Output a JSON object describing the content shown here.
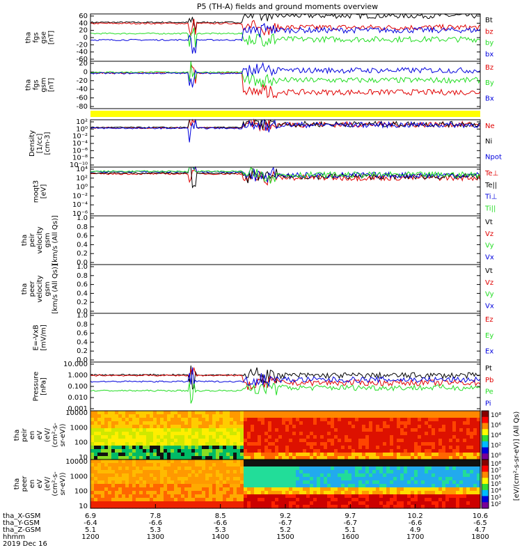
{
  "title": "P5 (TH-A) fields and ground moments overview",
  "colors": {
    "black": "#000000",
    "red": "#e00000",
    "green": "#22dd22",
    "blue": "#0000dd",
    "yellow": "#ffff00"
  },
  "chart_data": [
    {
      "type": "line",
      "id": "fgs_gse",
      "ylabel": [
        "tha",
        "fgs",
        "gse",
        "[nT]"
      ],
      "ylim": [
        -80,
        60
      ],
      "ticks": [
        "60",
        "40",
        "20",
        "0",
        "-20",
        "-40",
        "-60"
      ],
      "series": [
        {
          "name": "Bt",
          "color": "#000000",
          "level": 35,
          "level2": 55
        },
        {
          "name": "bz",
          "color": "#e00000",
          "level": 32,
          "level2": 20
        },
        {
          "name": "by",
          "color": "#22dd22",
          "level": 2,
          "level2": -15
        },
        {
          "name": "bx",
          "color": "#0000dd",
          "level": -17,
          "level2": 12
        }
      ]
    },
    {
      "type": "line",
      "id": "fgs_gsm",
      "ylabel": [
        "tha",
        "fgs",
        "gsm",
        "[nT]"
      ],
      "ylim": [
        -100,
        30
      ],
      "ticks": [
        "20",
        "0",
        "-20",
        "-40",
        "-60",
        "-80"
      ],
      "series": [
        {
          "name": "Bz",
          "color": "#e00000",
          "level": -2,
          "level2": -55
        },
        {
          "name": "By",
          "color": "#22dd22",
          "level": 0,
          "level2": -22
        },
        {
          "name": "Bx",
          "color": "#0000dd",
          "level": -3,
          "level2": 5
        }
      ]
    },
    {
      "type": "line",
      "id": "density",
      "ylabel": [
        "Density",
        "[1/cc]",
        "[cm-3]"
      ],
      "log": true,
      "ylim": [
        -11,
        3
      ],
      "ticks": [
        "10²",
        "10⁰",
        "10⁻²",
        "10⁻⁴",
        "10⁻⁶",
        "10⁻⁸",
        "10⁻¹⁰"
      ],
      "series": [
        {
          "name": "Ne",
          "color": "#e00000",
          "level": 0.6,
          "level2": 1.6
        },
        {
          "name": "Ni",
          "color": "#000000",
          "level": 0.7,
          "level2": 1.7
        },
        {
          "name": "Npot",
          "color": "#0000dd",
          "level": 0.5,
          "level2": 1.5
        }
      ]
    },
    {
      "type": "line",
      "id": "temp",
      "ylabel": [
        "moqt3",
        "[eV]"
      ],
      "log": true,
      "ylim": [
        -7,
        4.5
      ],
      "ticks": [
        "10⁴",
        "10²",
        "10⁰",
        "10⁻²",
        "10⁻⁴",
        "10⁻⁶"
      ],
      "series": [
        {
          "name": "Te⊥",
          "color": "#e00000",
          "level": 2.9,
          "level2": 2.0
        },
        {
          "name": "Te||",
          "color": "#000000",
          "level": 3.1,
          "level2": 2.3
        },
        {
          "name": "Ti⊥",
          "color": "#0000dd",
          "level": 3.4,
          "level2": 2.6
        },
        {
          "name": "Ti||",
          "color": "#22dd22",
          "level": 3.5,
          "level2": 2.7
        }
      ]
    },
    {
      "type": "line",
      "id": "peir_vel",
      "ylabel": [
        "tha",
        "peir",
        "velocity",
        "gsm",
        "[km/s (All Qs)]"
      ],
      "ylim": [
        0,
        1
      ],
      "ticks": [
        "1.0",
        "0.8",
        "0.6",
        "0.4",
        "0.2",
        "0.0"
      ],
      "series": [
        {
          "name": "Vt",
          "color": "#000000"
        },
        {
          "name": "Vz",
          "color": "#e00000"
        },
        {
          "name": "Vy",
          "color": "#22dd22"
        },
        {
          "name": "Vx",
          "color": "#0000dd"
        }
      ]
    },
    {
      "type": "line",
      "id": "peer_vel",
      "ylabel": [
        "tha",
        "peer",
        "velocity",
        "gsm",
        "[km/s (All Qs)]"
      ],
      "ylim": [
        0,
        1
      ],
      "ticks": [
        "1.0",
        "0.8",
        "0.6",
        "0.4",
        "0.2",
        "0.0"
      ],
      "series": [
        {
          "name": "Vt",
          "color": "#000000"
        },
        {
          "name": "Vz",
          "color": "#e00000"
        },
        {
          "name": "Vy",
          "color": "#22dd22"
        },
        {
          "name": "Vx",
          "color": "#0000dd"
        }
      ]
    },
    {
      "type": "line",
      "id": "efield",
      "ylabel": [
        "E=-VxB",
        "[mV/m]"
      ],
      "ylim": [
        0,
        1
      ],
      "ticks": [
        "1.0",
        "0.8",
        "0.6",
        "0.4",
        "0.2",
        "0.0"
      ],
      "series": [
        {
          "name": "Ez",
          "color": "#e00000"
        },
        {
          "name": "Ey",
          "color": "#22dd22"
        },
        {
          "name": "Ex",
          "color": "#0000dd"
        }
      ]
    },
    {
      "type": "line",
      "id": "pressure",
      "ylabel": [
        "Pressure",
        "[nPa]"
      ],
      "log": true,
      "ylim": [
        -3,
        1
      ],
      "ticks": [
        "10.000",
        "1.000",
        "0.100",
        "0.010",
        "0.001"
      ],
      "series": [
        {
          "name": "Pt",
          "color": "#000000",
          "level": -0.05,
          "level2": -0.1
        },
        {
          "name": "Pb",
          "color": "#e00000",
          "level": -0.1,
          "level2": -0.7
        },
        {
          "name": "Pe",
          "color": "#22dd22",
          "level": -1.35,
          "level2": -1.1
        },
        {
          "name": "Pi",
          "color": "#0000dd",
          "level": -0.6,
          "level2": -0.45
        }
      ]
    },
    {
      "type": "heatmap",
      "id": "peir_spec",
      "ylabel": [
        "tha",
        "peir",
        "en",
        "eV",
        "(eV/",
        "(cm²-s-",
        "sr-eV))"
      ],
      "ticks": [
        "10000",
        "1000",
        "100",
        "10"
      ],
      "colorbar": {
        "label": "[eV/(cm²-s-sr-eV)] (All Qs)",
        "ticks": [
          "10⁸",
          "10⁶",
          "10⁴",
          "10²",
          "10⁰"
        ]
      }
    },
    {
      "type": "heatmap",
      "id": "peer_spec",
      "ylabel": [
        "tha",
        "peer",
        "en",
        "eV",
        "(eV/",
        "(cm²-s-",
        "sr-eV))"
      ],
      "ticks": [
        "10000",
        "1000",
        "100",
        "10"
      ],
      "colorbar": {
        "label": "[eV/(cm²-s-sr-eV)] (All Qs)",
        "ticks": [
          "10⁸",
          "10⁷",
          "10⁶",
          "10⁵",
          "10⁴",
          "10³",
          "10²"
        ]
      }
    }
  ],
  "x_axis": {
    "columns": [
      "1200",
      "1300",
      "1400",
      "1500",
      "1600",
      "1700",
      "1800"
    ],
    "rows": [
      {
        "label": "tha_X-GSM",
        "values": [
          "6.9",
          "7.8",
          "8.5",
          "9.2",
          "9.7",
          "10.2",
          "10.6"
        ]
      },
      {
        "label": "tha_Y-GSM",
        "values": [
          "-6.4",
          "-6.6",
          "-6.6",
          "-6.7",
          "-6.7",
          "-6.6",
          "-6.5"
        ]
      },
      {
        "label": "tha_Z-GSM",
        "values": [
          "5.1",
          "5.3",
          "5.3",
          "5.2",
          "5.1",
          "4.9",
          "4.7"
        ]
      },
      {
        "label": "hhmm",
        "values": [
          "1200",
          "1300",
          "1400",
          "1500",
          "1600",
          "1700",
          "1800"
        ]
      }
    ],
    "date": "2019 Dec 16"
  }
}
